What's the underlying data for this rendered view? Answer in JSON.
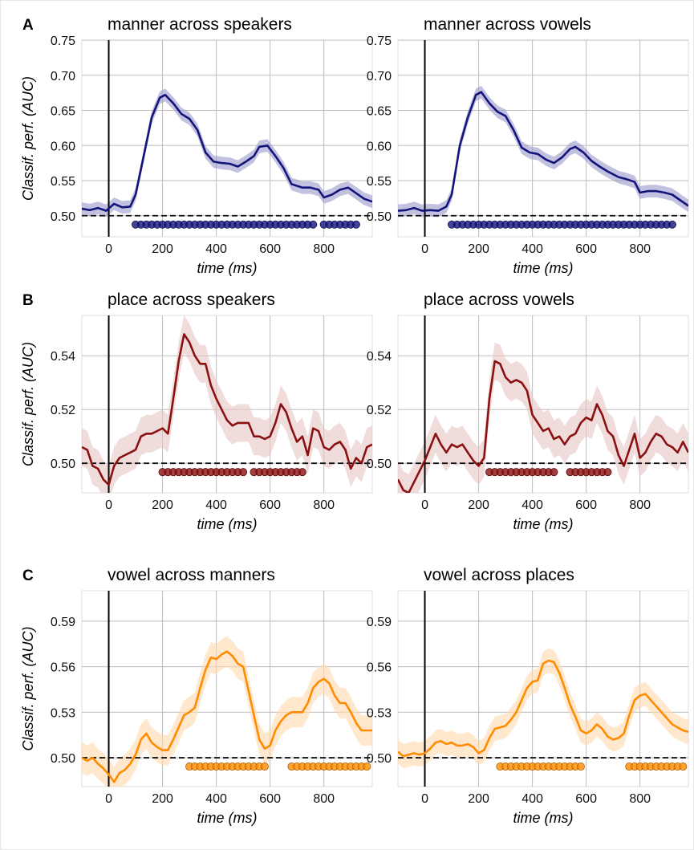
{
  "chart_data": [
    {
      "panel_label": "A",
      "type": "line",
      "title": "manner across speakers",
      "xlabel": "time (ms)",
      "ylabel": "Classif. perf. (AUC)",
      "xlim": [
        -100,
        980
      ],
      "ylim": [
        0.47,
        0.75
      ],
      "xticks": [
        0,
        200,
        400,
        600,
        800
      ],
      "yticks": [
        0.5,
        0.55,
        0.6,
        0.65,
        0.7,
        0.75
      ],
      "ytick_decimals": 2,
      "chance": 0.5,
      "grid": true,
      "color": "#14147a",
      "band_color": "#9999cc",
      "x": [
        -100,
        -70,
        -40,
        -10,
        20,
        50,
        80,
        100,
        130,
        160,
        190,
        210,
        240,
        270,
        300,
        330,
        360,
        390,
        420,
        450,
        480,
        510,
        540,
        560,
        590,
        620,
        650,
        680,
        720,
        750,
        780,
        800,
        830,
        860,
        890,
        920,
        950,
        980
      ],
      "y": [
        0.51,
        0.508,
        0.511,
        0.507,
        0.517,
        0.512,
        0.513,
        0.53,
        0.585,
        0.64,
        0.668,
        0.672,
        0.66,
        0.645,
        0.638,
        0.622,
        0.59,
        0.577,
        0.575,
        0.574,
        0.57,
        0.577,
        0.585,
        0.598,
        0.6,
        0.585,
        0.568,
        0.545,
        0.54,
        0.54,
        0.537,
        0.526,
        0.53,
        0.537,
        0.54,
        0.532,
        0.524,
        0.52
      ],
      "band": 0.009,
      "sig_segments": [
        [
          100,
          760
        ],
        [
          800,
          920
        ]
      ]
    },
    {
      "panel_label": "",
      "type": "line",
      "title": "manner across vowels",
      "xlabel": "time (ms)",
      "ylabel": "",
      "xlim": [
        -100,
        980
      ],
      "ylim": [
        0.47,
        0.75
      ],
      "xticks": [
        0,
        200,
        400,
        600,
        800
      ],
      "yticks": [
        0.5,
        0.55,
        0.6,
        0.65,
        0.7,
        0.75
      ],
      "ytick_decimals": 2,
      "chance": 0.5,
      "grid": true,
      "color": "#14147a",
      "band_color": "#9999cc",
      "x": [
        -100,
        -70,
        -40,
        -10,
        20,
        50,
        80,
        100,
        130,
        160,
        190,
        210,
        240,
        270,
        300,
        330,
        360,
        390,
        420,
        450,
        480,
        510,
        540,
        560,
        590,
        620,
        650,
        680,
        720,
        750,
        780,
        800,
        830,
        860,
        890,
        920,
        950,
        980
      ],
      "y": [
        0.507,
        0.508,
        0.511,
        0.507,
        0.508,
        0.507,
        0.513,
        0.53,
        0.6,
        0.64,
        0.672,
        0.676,
        0.66,
        0.648,
        0.642,
        0.622,
        0.597,
        0.59,
        0.588,
        0.58,
        0.575,
        0.583,
        0.595,
        0.598,
        0.59,
        0.578,
        0.57,
        0.563,
        0.555,
        0.552,
        0.548,
        0.533,
        0.535,
        0.535,
        0.533,
        0.53,
        0.522,
        0.514
      ],
      "band": 0.009,
      "sig_segments": [
        [
          100,
          920
        ]
      ]
    },
    {
      "panel_label": "B",
      "type": "line",
      "title": "place across speakers",
      "xlabel": "time (ms)",
      "ylabel": "Classif. perf. (AUC)",
      "xlim": [
        -100,
        980
      ],
      "ylim": [
        0.489,
        0.555
      ],
      "xticks": [
        0,
        200,
        400,
        600,
        800
      ],
      "yticks": [
        0.5,
        0.52,
        0.54
      ],
      "ytick_decimals": 2,
      "chance": 0.5,
      "grid": true,
      "color": "#8b1010",
      "band_color": "#e7c4c4",
      "x": [
        -100,
        -80,
        -60,
        -40,
        -20,
        0,
        20,
        40,
        60,
        80,
        100,
        120,
        140,
        160,
        180,
        200,
        220,
        240,
        260,
        280,
        300,
        320,
        340,
        360,
        380,
        400,
        420,
        440,
        460,
        480,
        500,
        520,
        540,
        560,
        580,
        600,
        620,
        640,
        660,
        680,
        700,
        720,
        740,
        760,
        780,
        800,
        820,
        840,
        860,
        880,
        900,
        920,
        940,
        960,
        980
      ],
      "y": [
        0.506,
        0.505,
        0.499,
        0.498,
        0.494,
        0.492,
        0.499,
        0.502,
        0.503,
        0.504,
        0.505,
        0.51,
        0.511,
        0.511,
        0.512,
        0.513,
        0.511,
        0.524,
        0.538,
        0.548,
        0.545,
        0.54,
        0.537,
        0.537,
        0.529,
        0.524,
        0.52,
        0.516,
        0.514,
        0.515,
        0.515,
        0.515,
        0.51,
        0.51,
        0.509,
        0.51,
        0.515,
        0.522,
        0.519,
        0.513,
        0.508,
        0.51,
        0.503,
        0.513,
        0.512,
        0.506,
        0.505,
        0.507,
        0.508,
        0.505,
        0.498,
        0.502,
        0.5,
        0.506,
        0.507
      ],
      "band": 0.007,
      "sig_segments": [
        [
          200,
          500
        ],
        [
          540,
          720
        ]
      ]
    },
    {
      "panel_label": "",
      "type": "line",
      "title": "place across vowels",
      "xlabel": "time (ms)",
      "ylabel": "",
      "xlim": [
        -100,
        980
      ],
      "ylim": [
        0.489,
        0.555
      ],
      "xticks": [
        0,
        200,
        400,
        600,
        800
      ],
      "yticks": [
        0.5,
        0.52,
        0.54
      ],
      "ytick_decimals": 2,
      "chance": 0.5,
      "grid": true,
      "color": "#8b1010",
      "band_color": "#e7c4c4",
      "x": [
        -100,
        -80,
        -60,
        -40,
        -20,
        0,
        20,
        40,
        60,
        80,
        100,
        120,
        140,
        160,
        180,
        200,
        220,
        240,
        260,
        280,
        300,
        320,
        340,
        360,
        380,
        400,
        420,
        440,
        460,
        480,
        500,
        520,
        540,
        560,
        580,
        600,
        620,
        640,
        660,
        680,
        700,
        720,
        740,
        760,
        780,
        800,
        820,
        840,
        860,
        880,
        900,
        920,
        940,
        960,
        980
      ],
      "y": [
        0.494,
        0.49,
        0.489,
        0.493,
        0.497,
        0.501,
        0.506,
        0.511,
        0.507,
        0.504,
        0.507,
        0.506,
        0.507,
        0.504,
        0.501,
        0.499,
        0.502,
        0.524,
        0.538,
        0.537,
        0.532,
        0.53,
        0.531,
        0.53,
        0.527,
        0.518,
        0.515,
        0.512,
        0.513,
        0.509,
        0.51,
        0.507,
        0.51,
        0.511,
        0.515,
        0.517,
        0.516,
        0.522,
        0.518,
        0.512,
        0.51,
        0.503,
        0.499,
        0.505,
        0.511,
        0.502,
        0.504,
        0.508,
        0.511,
        0.51,
        0.507,
        0.506,
        0.504,
        0.508,
        0.504
      ],
      "band": 0.007,
      "sig_segments": [
        [
          240,
          480
        ],
        [
          540,
          680
        ]
      ]
    },
    {
      "panel_label": "C",
      "type": "line",
      "title": "vowel across manners",
      "xlabel": "time (ms)",
      "ylabel": "Classif. perf. (AUC)",
      "xlim": [
        -100,
        980
      ],
      "ylim": [
        0.481,
        0.61
      ],
      "xticks": [
        0,
        200,
        400,
        600,
        800
      ],
      "yticks": [
        0.5,
        0.53,
        0.56,
        0.59
      ],
      "ytick_decimals": 2,
      "chance": 0.5,
      "grid": true,
      "color": "#ff8c00",
      "band_color": "#ffd9ad",
      "x": [
        -100,
        -80,
        -60,
        -40,
        -20,
        0,
        20,
        40,
        60,
        80,
        100,
        120,
        140,
        160,
        180,
        200,
        220,
        240,
        260,
        280,
        300,
        320,
        340,
        360,
        380,
        400,
        420,
        440,
        460,
        480,
        500,
        520,
        540,
        560,
        580,
        600,
        620,
        640,
        660,
        680,
        700,
        720,
        740,
        760,
        780,
        800,
        820,
        840,
        860,
        880,
        900,
        920,
        940,
        960,
        980
      ],
      "y": [
        0.5,
        0.498,
        0.5,
        0.496,
        0.493,
        0.489,
        0.484,
        0.49,
        0.492,
        0.496,
        0.502,
        0.512,
        0.516,
        0.51,
        0.507,
        0.505,
        0.505,
        0.512,
        0.52,
        0.528,
        0.53,
        0.533,
        0.546,
        0.558,
        0.566,
        0.565,
        0.568,
        0.57,
        0.567,
        0.562,
        0.56,
        0.544,
        0.528,
        0.512,
        0.506,
        0.508,
        0.518,
        0.524,
        0.528,
        0.53,
        0.53,
        0.53,
        0.536,
        0.546,
        0.55,
        0.552,
        0.549,
        0.541,
        0.536,
        0.536,
        0.53,
        0.523,
        0.518,
        0.518,
        0.518
      ],
      "band": 0.01,
      "sig_segments": [
        [
          300,
          580
        ],
        [
          680,
          960
        ]
      ]
    },
    {
      "panel_label": "",
      "type": "line",
      "title": "vowel across places",
      "xlabel": "time (ms)",
      "ylabel": "",
      "xlim": [
        -100,
        980
      ],
      "ylim": [
        0.481,
        0.61
      ],
      "xticks": [
        0,
        200,
        400,
        600,
        800
      ],
      "yticks": [
        0.5,
        0.53,
        0.56,
        0.59
      ],
      "ytick_decimals": 2,
      "chance": 0.5,
      "grid": true,
      "color": "#ff8c00",
      "band_color": "#ffd9ad",
      "x": [
        -100,
        -80,
        -60,
        -40,
        -20,
        0,
        20,
        40,
        60,
        80,
        100,
        120,
        140,
        160,
        180,
        200,
        220,
        240,
        260,
        280,
        300,
        320,
        340,
        360,
        380,
        400,
        420,
        440,
        460,
        480,
        500,
        520,
        540,
        560,
        580,
        600,
        620,
        640,
        660,
        680,
        700,
        720,
        740,
        760,
        780,
        800,
        820,
        840,
        860,
        880,
        900,
        920,
        940,
        960,
        980
      ],
      "y": [
        0.504,
        0.501,
        0.502,
        0.503,
        0.502,
        0.503,
        0.506,
        0.51,
        0.511,
        0.509,
        0.51,
        0.508,
        0.508,
        0.509,
        0.507,
        0.503,
        0.505,
        0.513,
        0.519,
        0.52,
        0.521,
        0.525,
        0.53,
        0.538,
        0.546,
        0.55,
        0.551,
        0.562,
        0.564,
        0.563,
        0.556,
        0.546,
        0.535,
        0.527,
        0.518,
        0.516,
        0.518,
        0.522,
        0.519,
        0.514,
        0.512,
        0.513,
        0.516,
        0.528,
        0.538,
        0.541,
        0.542,
        0.538,
        0.534,
        0.53,
        0.526,
        0.522,
        0.52,
        0.518,
        0.517
      ],
      "band": 0.008,
      "sig_segments": [
        [
          280,
          580
        ],
        [
          760,
          960
        ]
      ]
    }
  ]
}
